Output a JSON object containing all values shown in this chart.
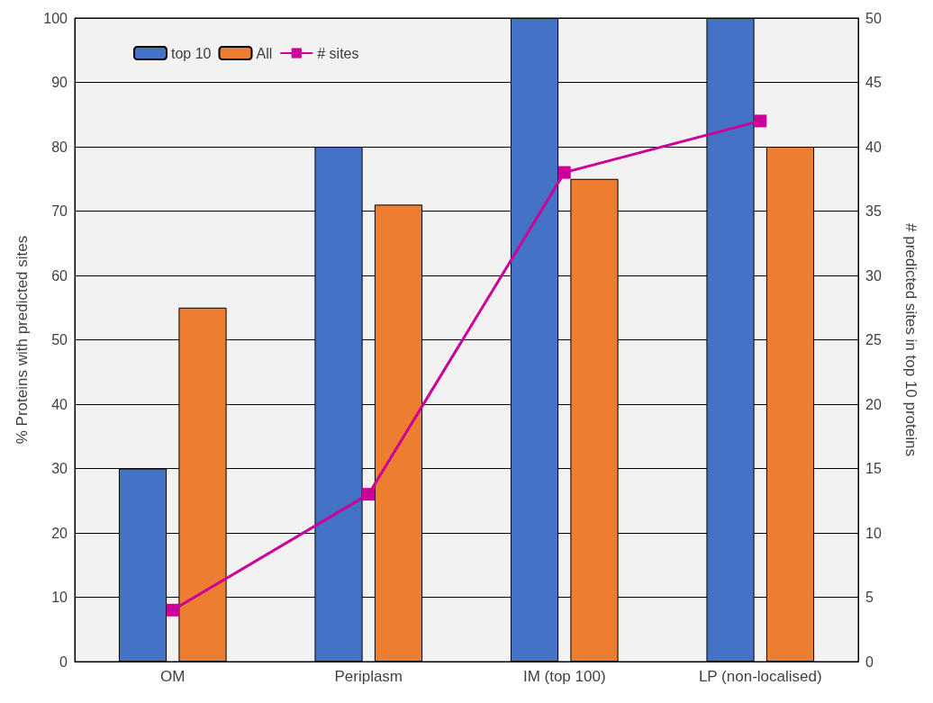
{
  "chart_data": {
    "type": "bar",
    "xlabel": null,
    "ylabel": "% Proteins with predicted sites",
    "y2label": "# predicted sites in top 10 proteins",
    "categories": [
      "OM",
      "Periplasm",
      "IM (top 100)",
      "LP (non-localised)"
    ],
    "series": [
      {
        "name": "top 10",
        "color": "#4472c4",
        "values": [
          30,
          80,
          100,
          100
        ]
      },
      {
        "name": "All",
        "color": "#ed7d31",
        "values": [
          55,
          71,
          75,
          80
        ]
      },
      {
        "name": "# sites",
        "type": "line",
        "axis": "y2",
        "color": "#cc0099",
        "values": [
          4,
          13,
          38,
          42
        ],
        "marker": "square",
        "line_style": "solid"
      }
    ],
    "ylim": [
      0,
      100
    ],
    "yticks": [
      0,
      10,
      20,
      30,
      40,
      50,
      60,
      70,
      80,
      90,
      100
    ],
    "y2lim": [
      0,
      50
    ],
    "y2ticks": [
      0,
      5,
      10,
      15,
      20,
      25,
      30,
      35,
      40,
      45,
      50
    ],
    "grid": "y",
    "legend": "top left"
  }
}
